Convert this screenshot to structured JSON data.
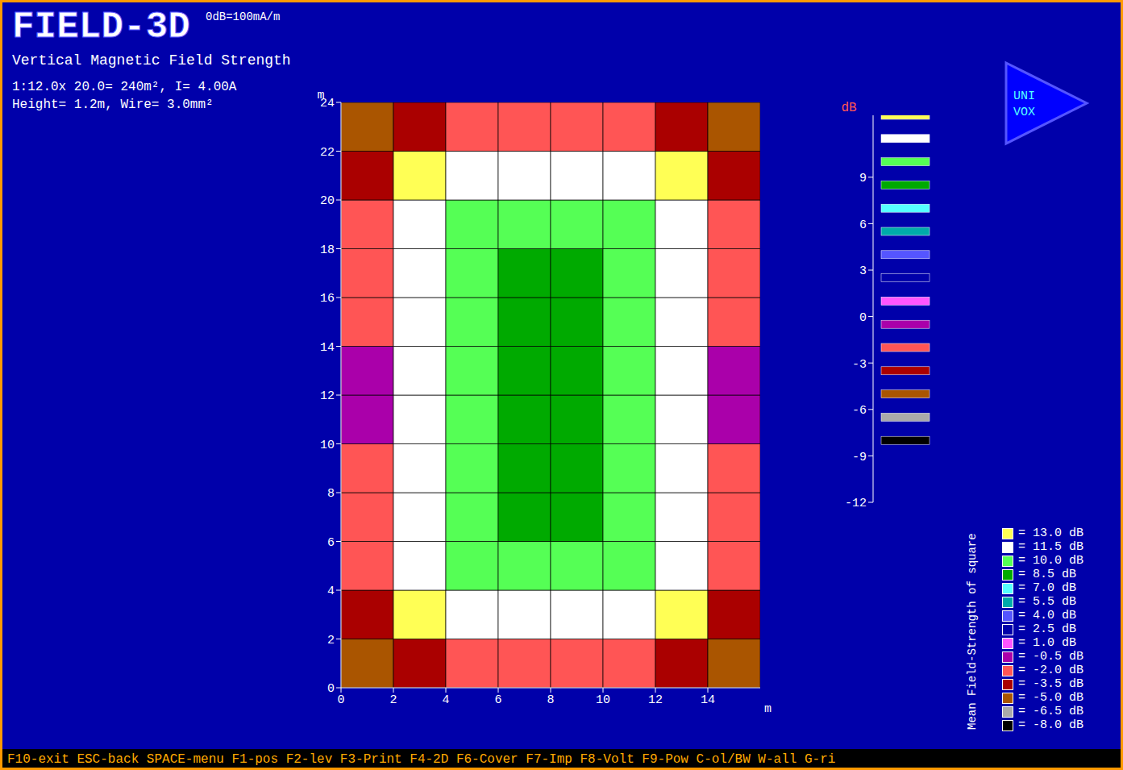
{
  "chart_data": {
    "type": "heatmap",
    "title": "FIELD-3D",
    "subtitle": "Vertical Magnetic Field Strength",
    "annotations": [
      "0dB=100mA/m",
      "1:12.0x 20.0= 240m², I= 4.00A",
      "Height= 1.2m, Wire= 3.0mm²"
    ],
    "logo": [
      "UNI",
      "VOX"
    ],
    "footer": "F10-exit ESC-back SPACE-menu F1-pos F2-lev F3-Print F4-2D F6-Cover F7-Imp F8-Volt F9-Pow C-ol/BW W-all G-ri",
    "x_label": "m",
    "y_label": "m",
    "z_label": "dB",
    "x": [
      1,
      3,
      5,
      7,
      9,
      11,
      13,
      15
    ],
    "y": [
      1,
      3,
      5,
      7,
      9,
      11,
      13,
      15,
      17,
      19,
      21,
      23
    ],
    "z": [
      [
        -5,
        -3.5,
        -2,
        -2,
        -2,
        -2,
        -3.5,
        -5
      ],
      [
        -3.5,
        13,
        11.5,
        11.5,
        11.5,
        11.5,
        13,
        -3.5
      ],
      [
        -2,
        11.5,
        10,
        10,
        10,
        10,
        11.5,
        -2
      ],
      [
        -2,
        11.5,
        10,
        8.5,
        8.5,
        10,
        11.5,
        -2
      ],
      [
        -2,
        11.5,
        10,
        8.5,
        8.5,
        10,
        11.5,
        -2
      ],
      [
        -0.5,
        11.5,
        10,
        8.5,
        8.5,
        10,
        11.5,
        -0.5
      ],
      [
        -0.5,
        11.5,
        10,
        8.5,
        8.5,
        10,
        11.5,
        -0.5
      ],
      [
        -2,
        11.5,
        10,
        8.5,
        8.5,
        10,
        11.5,
        -2
      ],
      [
        -2,
        11.5,
        10,
        8.5,
        8.5,
        10,
        11.5,
        -2
      ],
      [
        -2,
        11.5,
        10,
        10,
        10,
        10,
        11.5,
        -2
      ],
      [
        -3.5,
        13,
        11.5,
        11.5,
        11.5,
        11.5,
        13,
        -3.5
      ],
      [
        -5,
        -3.5,
        -2,
        -2,
        -2,
        -2,
        -3.5,
        -5
      ]
    ],
    "xlim": [
      0,
      16
    ],
    "xticks": [
      0,
      2,
      4,
      6,
      8,
      10,
      12,
      14
    ],
    "ylim": [
      0,
      24
    ],
    "yticks": [
      0,
      2,
      4,
      6,
      8,
      10,
      12,
      14,
      16,
      18,
      20,
      22,
      24
    ],
    "zlim": [
      -12,
      13
    ],
    "zticks": [
      -12,
      -9,
      -6,
      -3,
      0,
      3,
      6,
      9
    ],
    "legend_title": "Mean Field-Strength of square",
    "legend_entries": [
      {
        "value": 13,
        "label": "= 13.0 dB",
        "color": "#ffff55"
      },
      {
        "value": 11.5,
        "label": "= 11.5 dB",
        "color": "#ffffff"
      },
      {
        "value": 10,
        "label": "= 10.0 dB",
        "color": "#55ff55"
      },
      {
        "value": 8.5,
        "label": "= 8.5 dB",
        "color": "#00aa00"
      },
      {
        "value": 7,
        "label": "= 7.0 dB",
        "color": "#55ffff"
      },
      {
        "value": 5.5,
        "label": "= 5.5 dB",
        "color": "#00aaaa"
      },
      {
        "value": 4,
        "label": "= 4.0 dB",
        "color": "#5555ff"
      },
      {
        "value": 2.5,
        "label": "= 2.5 dB",
        "color": "#0000aa"
      },
      {
        "value": 1,
        "label": "= 1.0 dB",
        "color": "#ff55ff"
      },
      {
        "value": -0.5,
        "label": "= -0.5 dB",
        "color": "#aa00aa"
      },
      {
        "value": -2,
        "label": "= -2.0 dB",
        "color": "#ff5555"
      },
      {
        "value": -3.5,
        "label": "= -3.5 dB",
        "color": "#aa0000"
      },
      {
        "value": -5,
        "label": "= -5.0 dB",
        "color": "#aa5500"
      },
      {
        "value": -6.5,
        "label": "= -6.5 dB",
        "color": "#aaaaaa"
      },
      {
        "value": -8,
        "label": "= -8.0 dB",
        "color": "#000000"
      }
    ]
  }
}
